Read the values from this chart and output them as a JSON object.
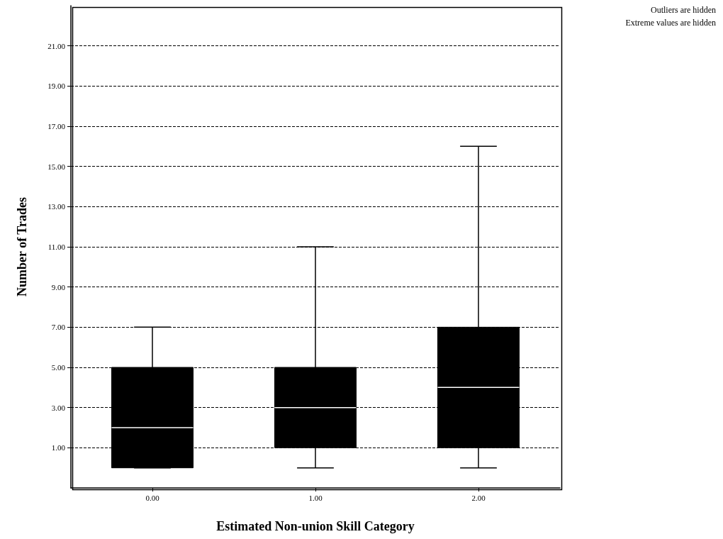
{
  "chart_data": {
    "type": "box",
    "xlabel": "Estimated Non-union Skill Category",
    "ylabel": "Number of Trades",
    "categories": [
      "0.00",
      "1.00",
      "2.00"
    ],
    "series": [
      {
        "color": "#000000",
        "boxes": [
          {
            "low": 0,
            "q1": 0,
            "median": 2,
            "q3": 5,
            "high": 7
          },
          {
            "low": 0,
            "q1": 1,
            "median": 3,
            "q3": 5,
            "high": 11
          },
          {
            "low": 0,
            "q1": 1,
            "median": 4,
            "q3": 7,
            "high": 16
          }
        ]
      }
    ],
    "ylim": [
      -1,
      23
    ],
    "yticks": [
      {
        "value": 1,
        "label": "1.00"
      },
      {
        "value": 3,
        "label": "3.00"
      },
      {
        "value": 5,
        "label": "5.00"
      },
      {
        "value": 7,
        "label": "7.00"
      },
      {
        "value": 9,
        "label": "9.00"
      },
      {
        "value": 11,
        "label": "11.00"
      },
      {
        "value": 13,
        "label": "13.00"
      },
      {
        "value": 15,
        "label": "15.00"
      },
      {
        "value": 17,
        "label": "17.00"
      },
      {
        "value": 19,
        "label": "19.00"
      },
      {
        "value": 21,
        "label": "21.00"
      }
    ],
    "grid": "y",
    "annotations": [
      "Outliers are hidden",
      "Extreme values are hidden"
    ]
  }
}
